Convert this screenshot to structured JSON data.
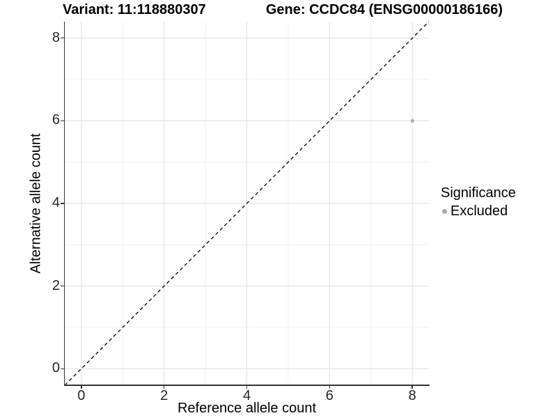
{
  "figure": {
    "title_left": "Variant: 11:118880307",
    "title_right": "Gene: CCDC84 (ENSG00000186166)"
  },
  "chart_data": {
    "type": "scatter",
    "title_left": "Variant: 11:118880307",
    "title_right": "Gene: CCDC84 (ENSG00000186166)",
    "xlabel": "Reference allele count",
    "ylabel": "Alternative allele count",
    "xlim": [
      -0.4,
      8.4
    ],
    "ylim": [
      -0.4,
      8.4
    ],
    "x_ticks": [
      0,
      2,
      4,
      6,
      8
    ],
    "y_ticks": [
      0,
      2,
      4,
      6,
      8
    ],
    "x_minor_gridlines": [
      1,
      3,
      5,
      7
    ],
    "y_minor_gridlines": [
      1,
      3,
      5,
      7
    ],
    "grid": true,
    "series": [
      {
        "name": "Excluded",
        "color": "#a8a8a8",
        "points": [
          {
            "x": 8,
            "y": 6
          }
        ]
      }
    ],
    "identity_line": {
      "style": "dashed",
      "color": "#000000",
      "x0": -0.4,
      "y0": -0.4,
      "x1": 8.4,
      "y1": 8.4
    },
    "colors": {
      "major_grid": "#e4e4e4",
      "minor_grid": "#f0f0f0",
      "axis": "#333333",
      "point": "#a8a8a8"
    },
    "legend_position": "right"
  },
  "legend": {
    "title": "Significance",
    "items": [
      {
        "label": "Excluded",
        "color": "#a8a8a8"
      }
    ]
  }
}
